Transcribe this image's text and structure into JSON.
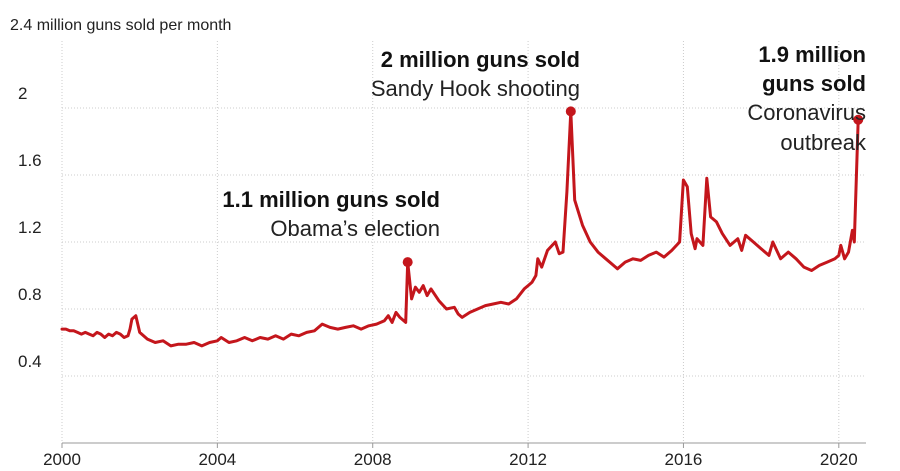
{
  "chart_data": {
    "type": "line",
    "title": "",
    "ylabel": "2.4 million guns sold per month",
    "xlabel": "",
    "xlim": [
      2000.0,
      2020.7
    ],
    "ylim": [
      0,
      2.4
    ],
    "x_ticks": [
      "2000",
      "2004",
      "2008",
      "2012",
      "2016",
      "2020"
    ],
    "y_ticks": [
      "0.4",
      "0.8",
      "1.2",
      "1.6",
      "2"
    ],
    "grid": "vertical and horizontal",
    "color": "#c4161c",
    "series": [
      {
        "name": "",
        "points": [
          [
            2000.0,
            0.68
          ],
          [
            2000.1,
            0.68
          ],
          [
            2000.2,
            0.67
          ],
          [
            2000.3,
            0.67
          ],
          [
            2000.4,
            0.66
          ],
          [
            2000.5,
            0.65
          ],
          [
            2000.6,
            0.66
          ],
          [
            2000.7,
            0.65
          ],
          [
            2000.8,
            0.64
          ],
          [
            2000.9,
            0.66
          ],
          [
            2001.0,
            0.65
          ],
          [
            2001.1,
            0.63
          ],
          [
            2001.2,
            0.65
          ],
          [
            2001.3,
            0.64
          ],
          [
            2001.4,
            0.66
          ],
          [
            2001.5,
            0.65
          ],
          [
            2001.6,
            0.63
          ],
          [
            2001.7,
            0.64
          ],
          [
            2001.75,
            0.68
          ],
          [
            2001.8,
            0.74
          ],
          [
            2001.9,
            0.76
          ],
          [
            2002.0,
            0.66
          ],
          [
            2002.2,
            0.62
          ],
          [
            2002.4,
            0.6
          ],
          [
            2002.6,
            0.61
          ],
          [
            2002.8,
            0.58
          ],
          [
            2003.0,
            0.59
          ],
          [
            2003.2,
            0.59
          ],
          [
            2003.4,
            0.6
          ],
          [
            2003.6,
            0.58
          ],
          [
            2003.8,
            0.6
          ],
          [
            2004.0,
            0.61
          ],
          [
            2004.1,
            0.63
          ],
          [
            2004.3,
            0.6
          ],
          [
            2004.5,
            0.61
          ],
          [
            2004.7,
            0.63
          ],
          [
            2004.9,
            0.61
          ],
          [
            2005.1,
            0.63
          ],
          [
            2005.3,
            0.62
          ],
          [
            2005.5,
            0.64
          ],
          [
            2005.7,
            0.62
          ],
          [
            2005.9,
            0.65
          ],
          [
            2006.1,
            0.64
          ],
          [
            2006.3,
            0.66
          ],
          [
            2006.5,
            0.67
          ],
          [
            2006.7,
            0.71
          ],
          [
            2006.9,
            0.69
          ],
          [
            2007.1,
            0.68
          ],
          [
            2007.3,
            0.69
          ],
          [
            2007.5,
            0.7
          ],
          [
            2007.7,
            0.68
          ],
          [
            2007.9,
            0.7
          ],
          [
            2008.1,
            0.71
          ],
          [
            2008.3,
            0.73
          ],
          [
            2008.4,
            0.76
          ],
          [
            2008.5,
            0.72
          ],
          [
            2008.6,
            0.78
          ],
          [
            2008.7,
            0.75
          ],
          [
            2008.85,
            0.72
          ],
          [
            2008.9,
            1.08
          ],
          [
            2009.0,
            0.86
          ],
          [
            2009.1,
            0.93
          ],
          [
            2009.2,
            0.9
          ],
          [
            2009.3,
            0.94
          ],
          [
            2009.4,
            0.88
          ],
          [
            2009.5,
            0.92
          ],
          [
            2009.7,
            0.85
          ],
          [
            2009.9,
            0.8
          ],
          [
            2010.1,
            0.81
          ],
          [
            2010.2,
            0.77
          ],
          [
            2010.3,
            0.75
          ],
          [
            2010.5,
            0.78
          ],
          [
            2010.7,
            0.8
          ],
          [
            2010.9,
            0.82
          ],
          [
            2011.1,
            0.83
          ],
          [
            2011.3,
            0.84
          ],
          [
            2011.5,
            0.83
          ],
          [
            2011.7,
            0.86
          ],
          [
            2011.9,
            0.92
          ],
          [
            2012.0,
            0.94
          ],
          [
            2012.1,
            0.96
          ],
          [
            2012.2,
            1.0
          ],
          [
            2012.25,
            1.1
          ],
          [
            2012.35,
            1.05
          ],
          [
            2012.5,
            1.15
          ],
          [
            2012.7,
            1.2
          ],
          [
            2012.8,
            1.13
          ],
          [
            2012.9,
            1.14
          ],
          [
            2013.0,
            1.5
          ],
          [
            2013.1,
            1.98
          ],
          [
            2013.2,
            1.45
          ],
          [
            2013.4,
            1.3
          ],
          [
            2013.6,
            1.2
          ],
          [
            2013.8,
            1.14
          ],
          [
            2014.0,
            1.1
          ],
          [
            2014.2,
            1.06
          ],
          [
            2014.3,
            1.04
          ],
          [
            2014.5,
            1.08
          ],
          [
            2014.7,
            1.1
          ],
          [
            2014.9,
            1.09
          ],
          [
            2015.1,
            1.12
          ],
          [
            2015.3,
            1.14
          ],
          [
            2015.5,
            1.11
          ],
          [
            2015.7,
            1.15
          ],
          [
            2015.9,
            1.2
          ],
          [
            2016.0,
            1.57
          ],
          [
            2016.1,
            1.53
          ],
          [
            2016.2,
            1.25
          ],
          [
            2016.3,
            1.16
          ],
          [
            2016.35,
            1.22
          ],
          [
            2016.5,
            1.18
          ],
          [
            2016.6,
            1.58
          ],
          [
            2016.7,
            1.35
          ],
          [
            2016.85,
            1.32
          ],
          [
            2017.0,
            1.25
          ],
          [
            2017.2,
            1.18
          ],
          [
            2017.4,
            1.22
          ],
          [
            2017.5,
            1.15
          ],
          [
            2017.6,
            1.24
          ],
          [
            2017.8,
            1.2
          ],
          [
            2018.0,
            1.16
          ],
          [
            2018.2,
            1.12
          ],
          [
            2018.3,
            1.2
          ],
          [
            2018.5,
            1.1
          ],
          [
            2018.7,
            1.14
          ],
          [
            2018.9,
            1.1
          ],
          [
            2019.1,
            1.05
          ],
          [
            2019.3,
            1.03
          ],
          [
            2019.5,
            1.06
          ],
          [
            2019.7,
            1.08
          ],
          [
            2019.9,
            1.1
          ],
          [
            2020.0,
            1.12
          ],
          [
            2020.05,
            1.18
          ],
          [
            2020.15,
            1.1
          ],
          [
            2020.25,
            1.14
          ],
          [
            2020.35,
            1.27
          ],
          [
            2020.4,
            1.2
          ],
          [
            2020.5,
            1.93
          ]
        ]
      }
    ],
    "highlights": [
      {
        "x": 2008.9,
        "y": 1.08
      },
      {
        "x": 2013.1,
        "y": 1.98
      },
      {
        "x": 2020.5,
        "y": 1.93
      }
    ],
    "annotations": [
      {
        "bold": "1.1 million guns sold",
        "text": "Obama’s election"
      },
      {
        "bold": "2 million guns sold",
        "text": "Sandy Hook shooting"
      },
      {
        "bold_lines": [
          "1.9 million",
          "guns sold"
        ],
        "text_lines": [
          "Coronavirus",
          "outbreak"
        ]
      }
    ]
  }
}
